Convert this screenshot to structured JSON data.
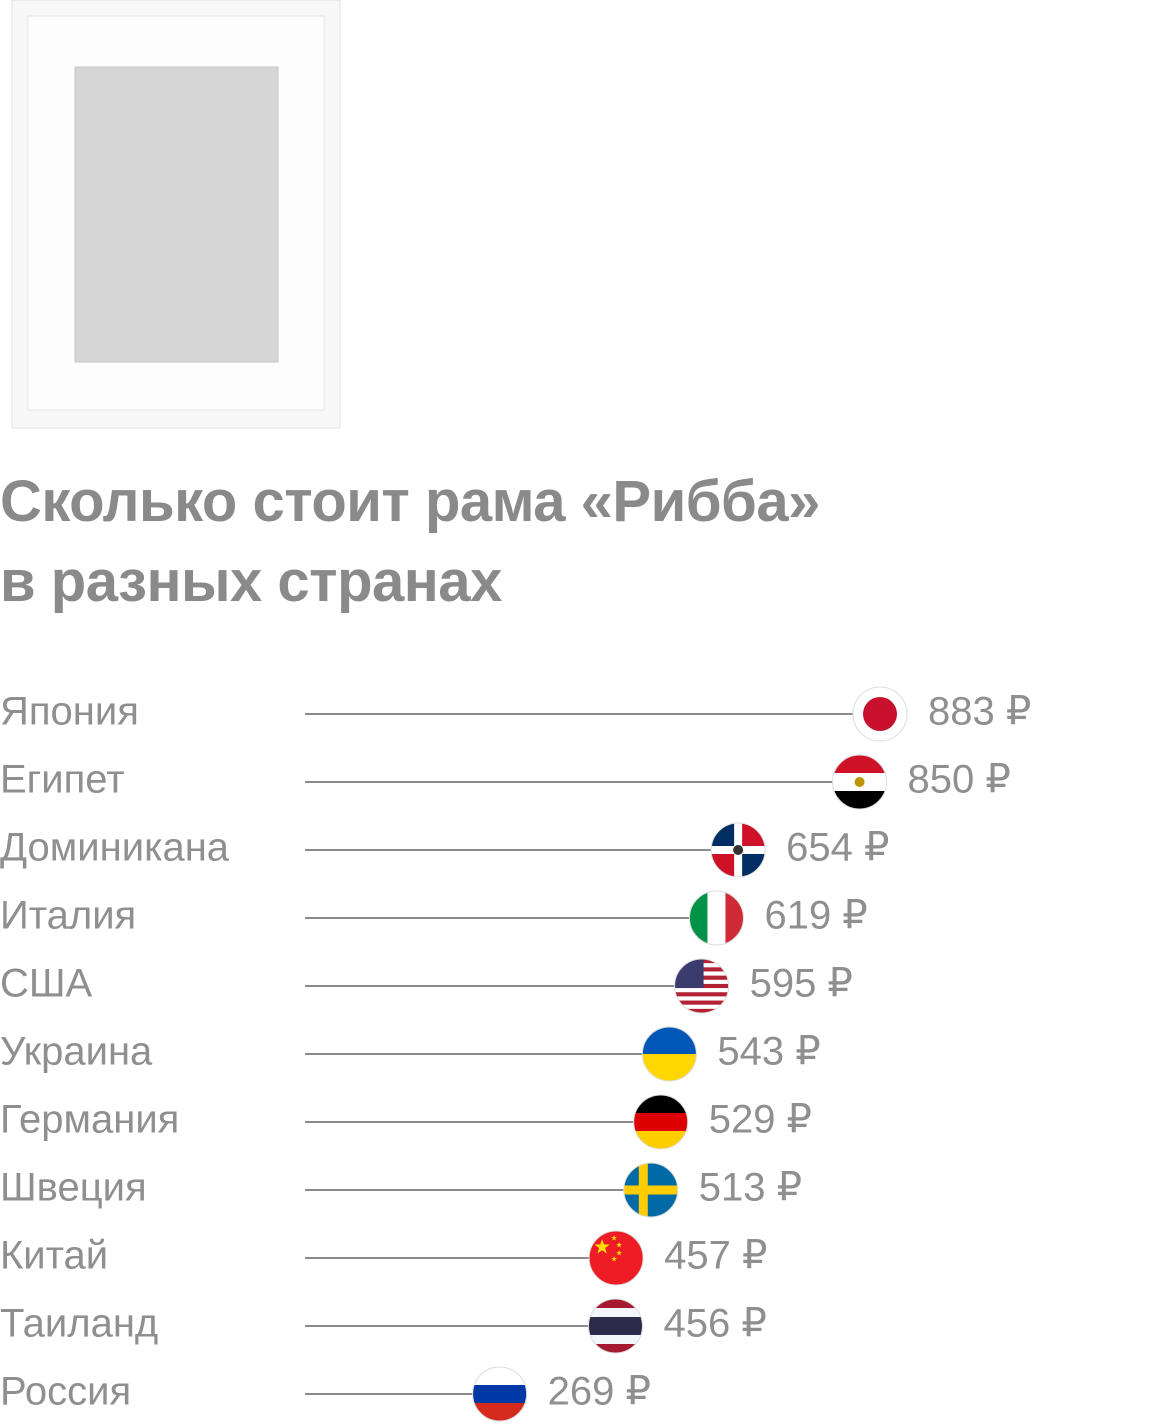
{
  "chart_data": {
    "type": "lollipop",
    "title": "Сколько стоит рама «Рибба»\nв разных странах",
    "categories": [
      "Япония",
      "Египет",
      "Доминикана",
      "Италия",
      "США",
      "Украина",
      "Германия",
      "Швеция",
      "Китай",
      "Таиланд",
      "Россия"
    ],
    "values": [
      883,
      850,
      654,
      619,
      595,
      543,
      529,
      513,
      457,
      456,
      269
    ],
    "value_labels": [
      "883 ₽",
      "850 ₽",
      "654 ₽",
      "619 ₽",
      "595 ₽",
      "543 ₽",
      "529 ₽",
      "513 ₽",
      "457 ₽",
      "456 ₽",
      "269 ₽"
    ],
    "color": "#8c8c8c"
  }
}
